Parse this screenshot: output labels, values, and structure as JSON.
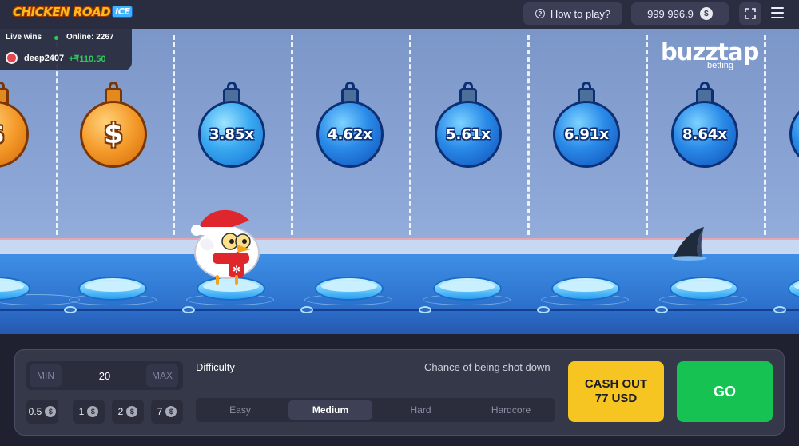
{
  "header": {
    "logo_text": "CHICKEN ROAD",
    "logo_badge": "ICE",
    "how_to_play": "How to play?",
    "balance": "999 996.9",
    "currency_symbol": "$"
  },
  "live_wins": {
    "label": "Live wins",
    "online": "Online: 2267",
    "user": "deep2407",
    "amount": "+₹110.50"
  },
  "branding": {
    "name": "buzztap",
    "sub": "betting"
  },
  "lanes": {
    "collected_symbol": "$",
    "multipliers": [
      "3.85x",
      "4.62x",
      "5.61x",
      "6.91x",
      "8.64x"
    ]
  },
  "bet": {
    "min_label": "MIN",
    "max_label": "MAX",
    "value": "20",
    "quick_amounts": [
      "0.5",
      "1",
      "2",
      "7"
    ]
  },
  "difficulty": {
    "label": "Difficulty",
    "chance_label": "Chance of being shot down",
    "options": [
      "Easy",
      "Medium",
      "Hard",
      "Hardcore"
    ],
    "selected": "Medium"
  },
  "actions": {
    "cashout_label": "CASH OUT",
    "cashout_amount": "77 USD",
    "go_label": "GO"
  },
  "colors": {
    "cashout": "#f6c521",
    "go": "#16c251",
    "win_green": "#2ec95b"
  }
}
